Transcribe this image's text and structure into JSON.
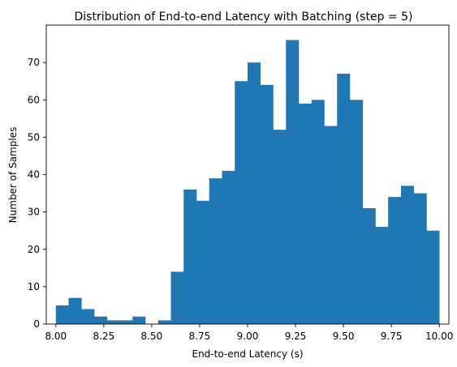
{
  "chart_data": {
    "type": "bar",
    "title": "Distribution of End-to-end Latency with Batching (step = 5)",
    "xlabel": "End-to-end Latency (s)",
    "ylabel": "Number of Samples",
    "xlim": [
      7.95,
      10.05
    ],
    "ylim": [
      0,
      80
    ],
    "x_ticks": [
      "8.00",
      "8.25",
      "8.50",
      "8.75",
      "9.00",
      "9.25",
      "9.50",
      "9.75",
      "10.00"
    ],
    "y_ticks": [
      "0",
      "10",
      "20",
      "30",
      "40",
      "50",
      "60",
      "70"
    ],
    "bin_edges": [
      8.0,
      8.0667,
      8.1333,
      8.2,
      8.2667,
      8.3333,
      8.4,
      8.4667,
      8.5333,
      8.6,
      8.6667,
      8.7333,
      8.8,
      8.8667,
      8.9333,
      9.0,
      9.0667,
      9.1333,
      9.2,
      9.2667,
      9.3333,
      9.4,
      9.4667,
      9.5333,
      9.6,
      9.6667,
      9.7333,
      9.8,
      9.8667,
      9.9333,
      10.0
    ],
    "values": [
      5,
      7,
      4,
      2,
      1,
      1,
      2,
      0,
      1,
      14,
      36,
      33,
      39,
      41,
      65,
      70,
      64,
      52,
      76,
      59,
      60,
      53,
      67,
      60,
      31,
      26,
      34,
      37,
      35,
      25
    ],
    "bar_color": "#1f77b4",
    "grid": false,
    "legend": "none"
  }
}
